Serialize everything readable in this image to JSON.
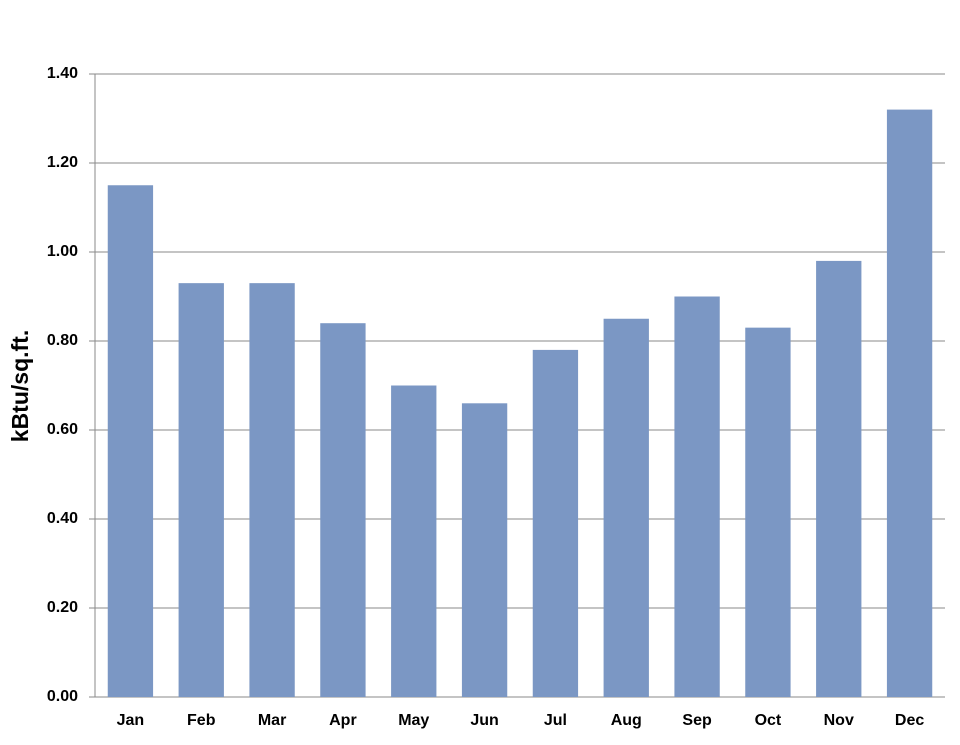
{
  "chart_data": {
    "type": "bar",
    "y_label": "kBtu/sq.ft.",
    "categories": [
      "Jan",
      "Feb",
      "Mar",
      "Apr",
      "May",
      "Jun",
      "Jul",
      "Aug",
      "Sep",
      "Oct",
      "Nov",
      "Dec"
    ],
    "values": [
      1.15,
      0.93,
      0.93,
      0.84,
      0.7,
      0.66,
      0.78,
      0.85,
      0.9,
      0.83,
      0.98,
      1.32
    ],
    "color": "#7b97c4",
    "ylim": [
      0,
      1.4
    ],
    "yticks": [
      {
        "value": 0,
        "label": "0.00"
      },
      {
        "value": 0.2,
        "label": "0.20"
      },
      {
        "value": 0.4,
        "label": "0.40"
      },
      {
        "value": 0.6,
        "label": "0.60"
      },
      {
        "value": 0.8,
        "label": "0.80"
      },
      {
        "value": 1.0,
        "label": "1.00"
      },
      {
        "value": 1.2,
        "label": "1.20"
      },
      {
        "value": 1.4,
        "label": "1.40"
      }
    ],
    "grid": true
  }
}
